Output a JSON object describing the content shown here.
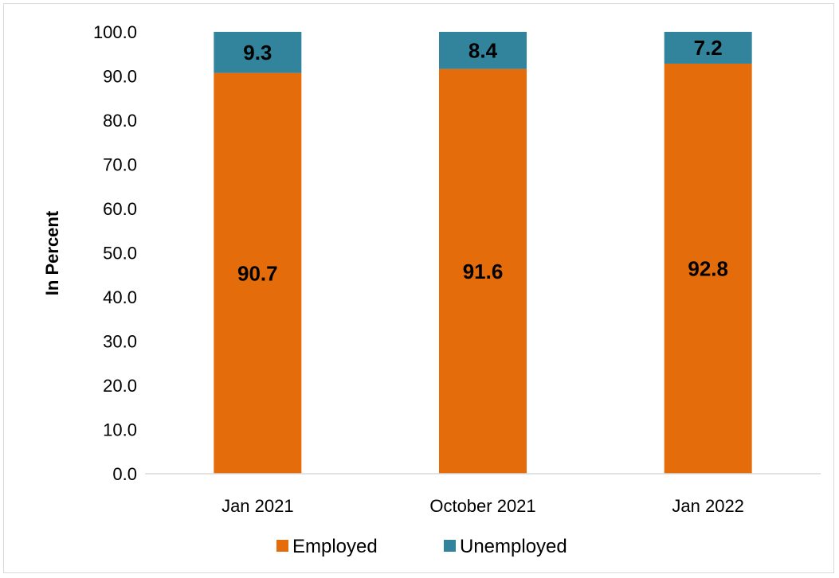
{
  "chart_data": {
    "type": "bar",
    "stacked": true,
    "categories": [
      "Jan 2021",
      "October 2021",
      "Jan 2022"
    ],
    "series": [
      {
        "name": "Employed",
        "values": [
          90.7,
          91.6,
          92.8
        ],
        "color": "#E46C0A"
      },
      {
        "name": "Unemployed",
        "values": [
          9.3,
          8.4,
          7.2
        ],
        "color": "#31849B"
      }
    ],
    "ylabel": "In Percent",
    "xlabel": "",
    "ylim": [
      0,
      100
    ],
    "yticks": [
      "0.0",
      "10.0",
      "20.0",
      "30.0",
      "40.0",
      "50.0",
      "60.0",
      "70.0",
      "80.0",
      "90.0",
      "100.0"
    ],
    "grid": false,
    "legend_position": "bottom"
  }
}
